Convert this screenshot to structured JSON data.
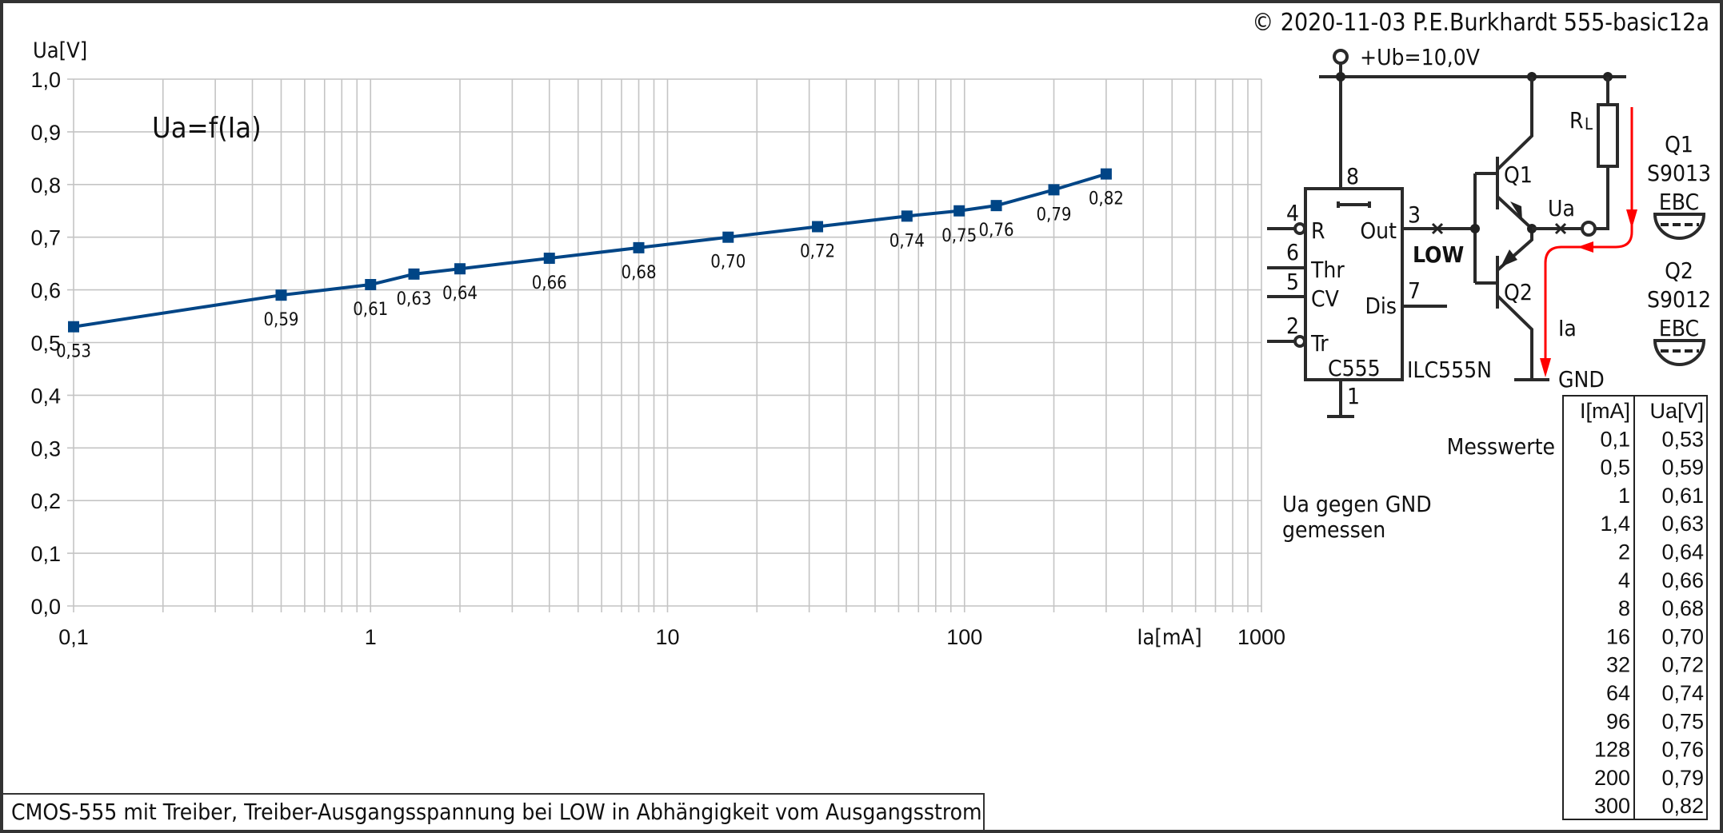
{
  "copyright": "© 2020-11-03 P.E.Burkhardt 555-basic12a",
  "caption": "CMOS-555 mit Treiber, Treiber-Ausgangsspannung bei LOW in Abhängigkeit vom Ausgangsstrom",
  "chart_data": {
    "type": "line",
    "title": "Ua=f(Ia)",
    "xlabel": "Ia[mA]",
    "ylabel": "Ua[V]",
    "xscale": "log",
    "xlim": [
      0.1,
      1000
    ],
    "ylim": [
      0.0,
      1.0
    ],
    "grid": true,
    "x_tick_labels": [
      "0,1",
      "1",
      "10",
      "100",
      "1000"
    ],
    "y_tick_labels": [
      "0,0",
      "0,1",
      "0,2",
      "0,3",
      "0,4",
      "0,5",
      "0,6",
      "0,7",
      "0,8",
      "0,9",
      "1,0"
    ],
    "series": [
      {
        "color": "#004586",
        "marker": "square",
        "x": [
          0.1,
          0.5,
          1,
          1.4,
          2,
          4,
          8,
          16,
          32,
          64,
          96,
          128,
          200,
          300
        ],
        "y": [
          0.53,
          0.59,
          0.61,
          0.63,
          0.64,
          0.66,
          0.68,
          0.7,
          0.72,
          0.74,
          0.75,
          0.76,
          0.79,
          0.82
        ],
        "data_labels": [
          "0,53",
          "0,59",
          "0,61",
          "0,63",
          "0,64",
          "0,66",
          "0,68",
          "0,70",
          "0,72",
          "0,74",
          "0,75",
          "0,76",
          "0,79",
          "0,82"
        ]
      }
    ]
  },
  "schematic": {
    "supply": "+Ub=10,0V",
    "ic_name": "C555",
    "ic_part": "ILC555N",
    "pins": {
      "p8": "8",
      "p4": "4",
      "p6": "6",
      "p5": "5",
      "p2": "2",
      "p3": "3",
      "p7": "7",
      "p1": "1"
    },
    "pin_labels": {
      "r": "R",
      "thr": "Thr",
      "cv": "CV",
      "tr": "Tr",
      "out": "Out",
      "dis": "Dis"
    },
    "low": "LOW",
    "q1": "Q1",
    "q2": "Q2",
    "ua": "Ua",
    "ia": "Ia",
    "gnd": "GND",
    "rl_main": "R",
    "rl_sub": "L",
    "q1_info": {
      "name": "Q1",
      "type": "S9013",
      "pinout": "EBC"
    },
    "q2_info": {
      "name": "Q2",
      "type": "S9012",
      "pinout": "EBC"
    },
    "current_color": "#ff0000"
  },
  "note": {
    "line1": "Ua gegen GND",
    "line2": "gemessen"
  },
  "table": {
    "label": "Messwerte",
    "headers": [
      "I[mA]",
      "Ua[V]"
    ],
    "rows": [
      [
        "0,1",
        "0,53"
      ],
      [
        "0,5",
        "0,59"
      ],
      [
        "1",
        "0,61"
      ],
      [
        "1,4",
        "0,63"
      ],
      [
        "2",
        "0,64"
      ],
      [
        "4",
        "0,66"
      ],
      [
        "8",
        "0,68"
      ],
      [
        "16",
        "0,70"
      ],
      [
        "32",
        "0,72"
      ],
      [
        "64",
        "0,74"
      ],
      [
        "96",
        "0,75"
      ],
      [
        "128",
        "0,76"
      ],
      [
        "200",
        "0,79"
      ],
      [
        "300",
        "0,82"
      ]
    ]
  }
}
